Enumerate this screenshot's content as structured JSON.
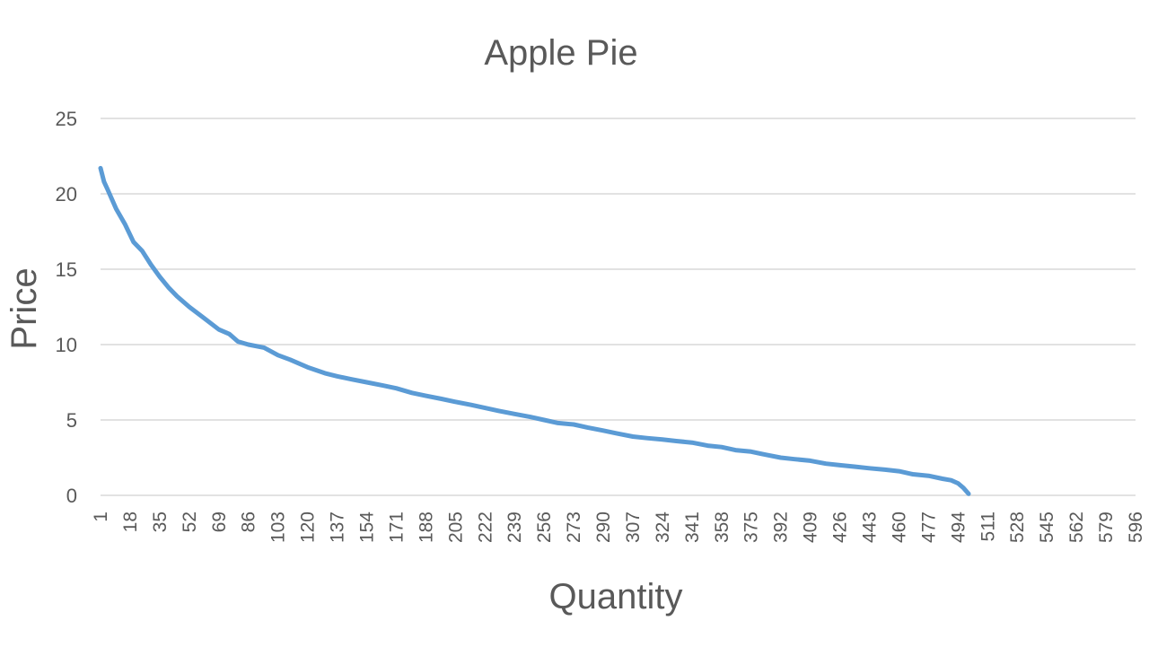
{
  "chart_data": {
    "type": "line",
    "title": "Apple Pie",
    "xlabel": "Quantity",
    "ylabel": "Price",
    "ylim": [
      0,
      25
    ],
    "xlim": [
      1,
      596
    ],
    "y_ticks": [
      "0",
      "5",
      "10",
      "15",
      "20",
      "25"
    ],
    "x_ticks": [
      "1",
      "18",
      "35",
      "52",
      "69",
      "86",
      "103",
      "120",
      "137",
      "154",
      "171",
      "188",
      "205",
      "222",
      "239",
      "256",
      "273",
      "290",
      "307",
      "324",
      "341",
      "358",
      "375",
      "392",
      "409",
      "426",
      "443",
      "460",
      "477",
      "494",
      "511",
      "528",
      "545",
      "562",
      "579",
      "596"
    ],
    "grid": true,
    "colors": {
      "line": "#5b9bd5",
      "grid": "#d9d9d9",
      "text": "#595959"
    },
    "series": [
      {
        "x": [
          1,
          3,
          5,
          10,
          15,
          20,
          25,
          30,
          35,
          40,
          45,
          52,
          60,
          69,
          75,
          80,
          86,
          95,
          103,
          110,
          120,
          130,
          137,
          145,
          154,
          163,
          171,
          180,
          188,
          197,
          205,
          214,
          222,
          230,
          239,
          248,
          256,
          264,
          273,
          281,
          290,
          298,
          307,
          315,
          324,
          332,
          341,
          350,
          358,
          366,
          375,
          383,
          392,
          400,
          409,
          418,
          426,
          435,
          443,
          452,
          460,
          468,
          477,
          485,
          490,
          494,
          497,
          500
        ],
        "y": [
          21.7,
          20.8,
          20.3,
          19.0,
          18.0,
          16.8,
          16.2,
          15.3,
          14.5,
          13.8,
          13.2,
          12.5,
          11.8,
          11.0,
          10.7,
          10.2,
          10.0,
          9.8,
          9.3,
          9.0,
          8.5,
          8.1,
          7.9,
          7.7,
          7.5,
          7.3,
          7.1,
          6.8,
          6.6,
          6.4,
          6.2,
          6.0,
          5.8,
          5.6,
          5.4,
          5.2,
          5.0,
          4.8,
          4.7,
          4.5,
          4.3,
          4.1,
          3.9,
          3.8,
          3.7,
          3.6,
          3.5,
          3.3,
          3.2,
          3.0,
          2.9,
          2.7,
          2.5,
          2.4,
          2.3,
          2.1,
          2.0,
          1.9,
          1.8,
          1.7,
          1.6,
          1.4,
          1.3,
          1.1,
          1.0,
          0.8,
          0.5,
          0.1
        ]
      }
    ]
  }
}
